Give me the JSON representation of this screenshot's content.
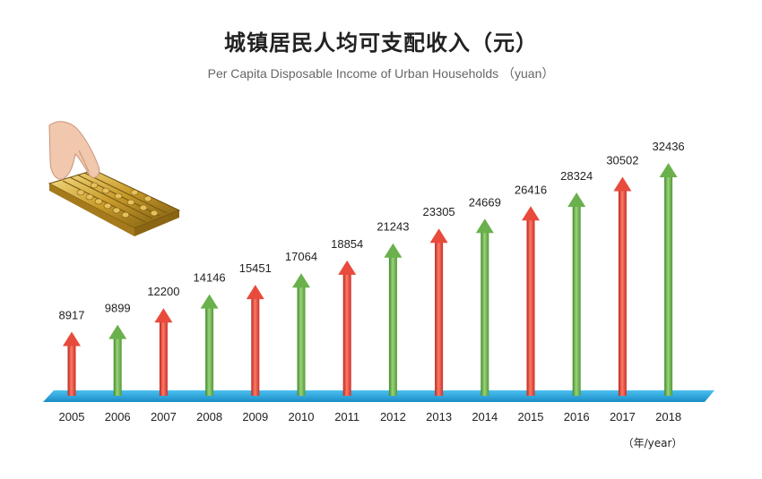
{
  "chart_data": {
    "type": "bar",
    "title": "城镇居民人均可支配收入（元）",
    "subtitle": "Per Capita  Disposable Income of Urban Households （yuan）",
    "xlabel": "",
    "ylabel": "",
    "x_unit": "（年/year）",
    "categories": [
      "2005",
      "2006",
      "2007",
      "2008",
      "2009",
      "2010",
      "2011",
      "2012",
      "2013",
      "2014",
      "2015",
      "2016",
      "2017",
      "2018"
    ],
    "values": [
      8917,
      9899,
      12200,
      14146,
      15451,
      17064,
      18854,
      21243,
      23305,
      24669,
      26416,
      28324,
      30502,
      32436
    ],
    "ylim": [
      0,
      32436
    ],
    "grid": false,
    "legend": "none",
    "colors": {
      "red_arrow": "#e84a3c",
      "green_arrow": "#6ab04c",
      "baseline": "#2aa7e0"
    }
  }
}
